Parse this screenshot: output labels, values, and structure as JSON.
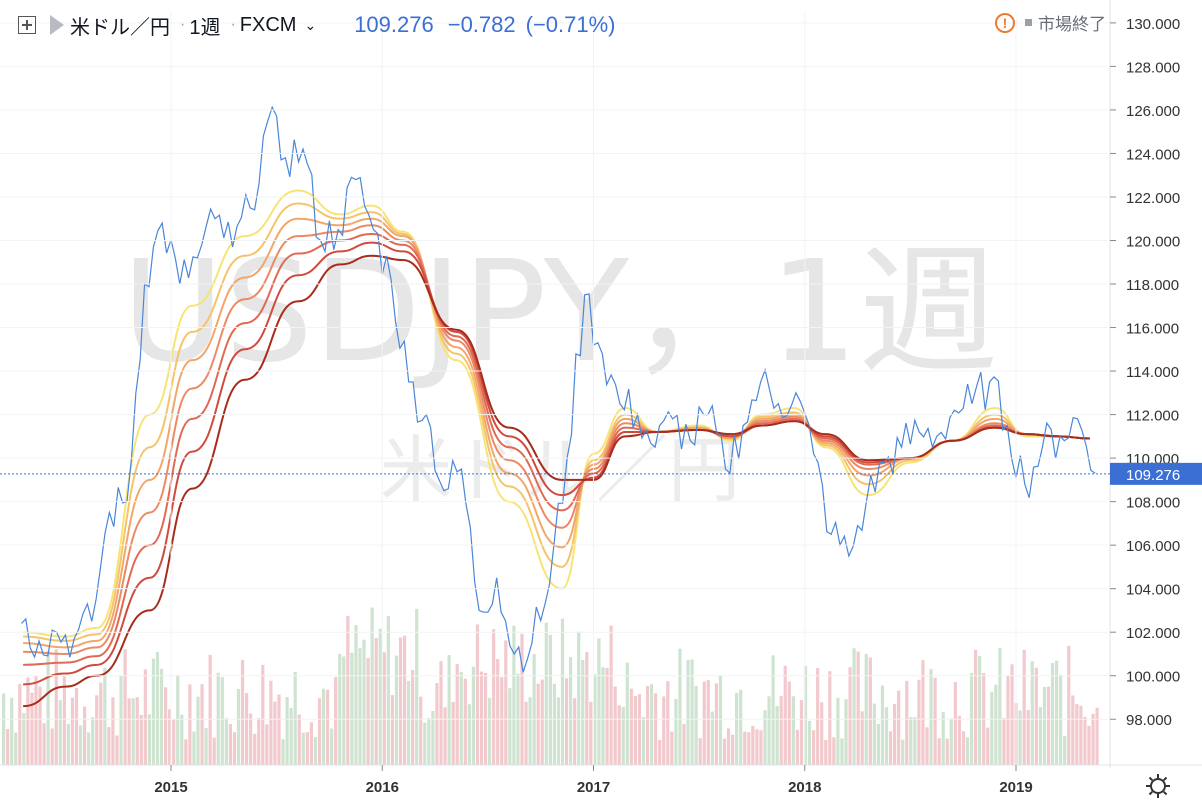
{
  "header": {
    "symbol": "米ドル／円",
    "interval": "1週",
    "exchange": "FXCM",
    "price": "109.276",
    "change": "−0.782",
    "change_pct": "(−0.71%)",
    "market_status": "市場終了"
  },
  "watermark": {
    "main": "USDJPY，1週",
    "sub": "米ドル／円"
  },
  "colors": {
    "price_line": "#4a86d9",
    "price_label_bg": "#3b6fd4",
    "vol_up": "#cfe3d1",
    "vol_down": "#f2c9cc",
    "ribbon": [
      "#f7e476",
      "#f6c36b",
      "#f2a66a",
      "#ec8a66",
      "#e16a55",
      "#cf4b3d",
      "#a82c1c"
    ]
  },
  "chart_data": {
    "type": "line",
    "title": "米ドル／円",
    "ylim": [
      97,
      130.5
    ],
    "yticks": [
      "98.000",
      "100.000",
      "102.000",
      "104.000",
      "106.000",
      "108.000",
      "110.000",
      "112.000",
      "114.000",
      "116.000",
      "118.000",
      "120.000",
      "122.000",
      "124.000",
      "126.000",
      "128.000",
      "130.000"
    ],
    "xticks": [
      "2015",
      "2016",
      "2017",
      "2018",
      "2019"
    ],
    "last_price": 109.276,
    "price_series": {
      "name": "USDJPY 1週",
      "points": [
        [
          "2014-04",
          102.4
        ],
        [
          "2014-05",
          101.6
        ],
        [
          "2014-06",
          102.0
        ],
        [
          "2014-07",
          101.7
        ],
        [
          "2014-08",
          102.5
        ],
        [
          "2014-09",
          107.5
        ],
        [
          "2014-10",
          108.0
        ],
        [
          "2014-11",
          118.0
        ],
        [
          "2014-12",
          120.8
        ],
        [
          "2015-01",
          118.0
        ],
        [
          "2015-02",
          119.2
        ],
        [
          "2015-03",
          121.0
        ],
        [
          "2015-04",
          119.7
        ],
        [
          "2015-05",
          121.5
        ],
        [
          "2015-06",
          125.5
        ],
        [
          "2015-07",
          123.8
        ],
        [
          "2015-08",
          124.2
        ],
        [
          "2015-09",
          120.0
        ],
        [
          "2015-10",
          120.5
        ],
        [
          "2015-11",
          122.8
        ],
        [
          "2015-12",
          120.5
        ],
        [
          "2016-01",
          118.2
        ],
        [
          "2016-02",
          113.5
        ],
        [
          "2016-03",
          112.0
        ],
        [
          "2016-04",
          108.5
        ],
        [
          "2016-05",
          109.5
        ],
        [
          "2016-06",
          103.0
        ],
        [
          "2016-07",
          104.5
        ],
        [
          "2016-08",
          101.0
        ],
        [
          "2016-09",
          101.5
        ],
        [
          "2016-10",
          104.2
        ],
        [
          "2016-11",
          110.0
        ],
        [
          "2016-12",
          117.5
        ],
        [
          "2017-01",
          114.8
        ],
        [
          "2017-02",
          112.5
        ],
        [
          "2017-03",
          112.0
        ],
        [
          "2017-04",
          110.5
        ],
        [
          "2017-05",
          111.8
        ],
        [
          "2017-06",
          110.8
        ],
        [
          "2017-07",
          112.0
        ],
        [
          "2017-08",
          109.5
        ],
        [
          "2017-09",
          111.5
        ],
        [
          "2017-10",
          113.5
        ],
        [
          "2017-11",
          112.5
        ],
        [
          "2017-12",
          113.0
        ],
        [
          "2018-01",
          110.2
        ],
        [
          "2018-02",
          106.5
        ],
        [
          "2018-03",
          105.5
        ],
        [
          "2018-04",
          108.0
        ],
        [
          "2018-05",
          109.8
        ],
        [
          "2018-06",
          110.5
        ],
        [
          "2018-07",
          111.2
        ],
        [
          "2018-08",
          111.0
        ],
        [
          "2018-09",
          112.2
        ],
        [
          "2018-10",
          112.5
        ],
        [
          "2018-11",
          113.5
        ],
        [
          "2018-12",
          111.5
        ],
        [
          "2019-01",
          108.8
        ],
        [
          "2019-02",
          110.5
        ],
        [
          "2019-03",
          111.0
        ],
        [
          "2019-04",
          111.8
        ],
        [
          "2019-05",
          109.3
        ]
      ]
    },
    "ribbon": [
      {
        "name": "MA1",
        "values": [
          [
            2014.3,
            102.0
          ],
          [
            2014.5,
            101.8
          ],
          [
            2014.65,
            102.2
          ],
          [
            2014.9,
            112.0
          ],
          [
            2015.1,
            117.0
          ],
          [
            2015.35,
            120.2
          ],
          [
            2015.6,
            122.3
          ],
          [
            2015.8,
            121.2
          ],
          [
            2015.95,
            121.6
          ],
          [
            2016.1,
            120.4
          ],
          [
            2016.35,
            114.5
          ],
          [
            2016.6,
            108.0
          ],
          [
            2016.85,
            104.0
          ],
          [
            2017.0,
            110.2
          ],
          [
            2017.15,
            112.3
          ],
          [
            2017.3,
            111.2
          ],
          [
            2017.5,
            111.5
          ],
          [
            2017.65,
            110.8
          ],
          [
            2017.8,
            112.0
          ],
          [
            2017.95,
            112.3
          ],
          [
            2018.1,
            110.5
          ],
          [
            2018.3,
            108.3
          ],
          [
            2018.5,
            109.8
          ],
          [
            2018.7,
            110.8
          ],
          [
            2018.9,
            112.3
          ],
          [
            2019.05,
            111.0
          ],
          [
            2019.2,
            111.0
          ],
          [
            2019.35,
            110.9
          ]
        ]
      },
      {
        "name": "MA2",
        "values": [
          [
            2014.3,
            101.8
          ],
          [
            2014.5,
            101.6
          ],
          [
            2014.65,
            101.9
          ],
          [
            2014.9,
            110.5
          ],
          [
            2015.1,
            115.8
          ],
          [
            2015.35,
            119.3
          ],
          [
            2015.6,
            121.7
          ],
          [
            2015.8,
            121.0
          ],
          [
            2015.95,
            121.3
          ],
          [
            2016.1,
            120.3
          ],
          [
            2016.35,
            114.8
          ],
          [
            2016.6,
            108.7
          ],
          [
            2016.85,
            105.0
          ],
          [
            2017.0,
            109.9
          ],
          [
            2017.15,
            112.0
          ],
          [
            2017.3,
            111.2
          ],
          [
            2017.5,
            111.4
          ],
          [
            2017.65,
            110.9
          ],
          [
            2017.8,
            111.9
          ],
          [
            2017.95,
            112.1
          ],
          [
            2018.1,
            110.6
          ],
          [
            2018.3,
            108.8
          ],
          [
            2018.5,
            109.9
          ],
          [
            2018.7,
            110.8
          ],
          [
            2018.9,
            112.0
          ],
          [
            2019.05,
            111.1
          ],
          [
            2019.2,
            111.0
          ],
          [
            2019.35,
            110.9
          ]
        ]
      },
      {
        "name": "MA3",
        "values": [
          [
            2014.3,
            101.5
          ],
          [
            2014.5,
            101.3
          ],
          [
            2014.65,
            101.6
          ],
          [
            2014.9,
            109.0
          ],
          [
            2015.1,
            114.5
          ],
          [
            2015.35,
            118.3
          ],
          [
            2015.6,
            121.0
          ],
          [
            2015.8,
            120.7
          ],
          [
            2015.95,
            121.0
          ],
          [
            2016.1,
            120.2
          ],
          [
            2016.35,
            115.1
          ],
          [
            2016.6,
            109.3
          ],
          [
            2016.85,
            105.9
          ],
          [
            2017.0,
            109.7
          ],
          [
            2017.15,
            111.8
          ],
          [
            2017.3,
            111.2
          ],
          [
            2017.5,
            111.4
          ],
          [
            2017.65,
            110.9
          ],
          [
            2017.8,
            111.8
          ],
          [
            2017.95,
            112.0
          ],
          [
            2018.1,
            110.7
          ],
          [
            2018.3,
            109.2
          ],
          [
            2018.5,
            110.0
          ],
          [
            2018.7,
            110.8
          ],
          [
            2018.9,
            111.8
          ],
          [
            2019.05,
            111.1
          ],
          [
            2019.2,
            111.0
          ],
          [
            2019.35,
            110.9
          ]
        ]
      },
      {
        "name": "MA4",
        "values": [
          [
            2014.3,
            101.1
          ],
          [
            2014.5,
            101.0
          ],
          [
            2014.65,
            101.3
          ],
          [
            2014.9,
            107.5
          ],
          [
            2015.1,
            113.2
          ],
          [
            2015.35,
            117.3
          ],
          [
            2015.6,
            120.2
          ],
          [
            2015.8,
            120.4
          ],
          [
            2015.95,
            120.7
          ],
          [
            2016.1,
            120.0
          ],
          [
            2016.35,
            115.4
          ],
          [
            2016.6,
            109.9
          ],
          [
            2016.85,
            106.8
          ],
          [
            2017.0,
            109.5
          ],
          [
            2017.15,
            111.6
          ],
          [
            2017.3,
            111.2
          ],
          [
            2017.5,
            111.3
          ],
          [
            2017.65,
            111.0
          ],
          [
            2017.8,
            111.7
          ],
          [
            2017.95,
            111.9
          ],
          [
            2018.1,
            110.8
          ],
          [
            2018.3,
            109.5
          ],
          [
            2018.5,
            110.0
          ],
          [
            2018.7,
            110.8
          ],
          [
            2018.9,
            111.6
          ],
          [
            2019.05,
            111.1
          ],
          [
            2019.2,
            111.0
          ],
          [
            2019.35,
            110.9
          ]
        ]
      },
      {
        "name": "MA5",
        "values": [
          [
            2014.3,
            100.5
          ],
          [
            2014.5,
            100.6
          ],
          [
            2014.65,
            100.9
          ],
          [
            2014.9,
            106.0
          ],
          [
            2015.1,
            111.8
          ],
          [
            2015.35,
            116.2
          ],
          [
            2015.6,
            119.4
          ],
          [
            2015.8,
            120.0
          ],
          [
            2015.95,
            120.3
          ],
          [
            2016.1,
            119.8
          ],
          [
            2016.35,
            115.6
          ],
          [
            2016.6,
            110.5
          ],
          [
            2016.85,
            107.6
          ],
          [
            2017.0,
            109.3
          ],
          [
            2017.15,
            111.4
          ],
          [
            2017.3,
            111.2
          ],
          [
            2017.5,
            111.3
          ],
          [
            2017.65,
            111.0
          ],
          [
            2017.8,
            111.6
          ],
          [
            2017.95,
            111.8
          ],
          [
            2018.1,
            110.9
          ],
          [
            2018.3,
            109.7
          ],
          [
            2018.5,
            110.0
          ],
          [
            2018.7,
            110.8
          ],
          [
            2018.9,
            111.5
          ],
          [
            2019.05,
            111.1
          ],
          [
            2019.2,
            111.0
          ],
          [
            2019.35,
            110.9
          ]
        ]
      },
      {
        "name": "MA6",
        "values": [
          [
            2014.3,
            99.6
          ],
          [
            2014.5,
            100.1
          ],
          [
            2014.65,
            100.5
          ],
          [
            2014.9,
            104.5
          ],
          [
            2015.1,
            110.3
          ],
          [
            2015.35,
            115.0
          ],
          [
            2015.6,
            118.4
          ],
          [
            2015.8,
            119.5
          ],
          [
            2015.95,
            119.9
          ],
          [
            2016.1,
            119.5
          ],
          [
            2016.35,
            115.8
          ],
          [
            2016.6,
            111.0
          ],
          [
            2016.85,
            108.3
          ],
          [
            2017.0,
            109.1
          ],
          [
            2017.15,
            111.2
          ],
          [
            2017.3,
            111.2
          ],
          [
            2017.5,
            111.3
          ],
          [
            2017.65,
            111.0
          ],
          [
            2017.8,
            111.5
          ],
          [
            2017.95,
            111.7
          ],
          [
            2018.1,
            111.0
          ],
          [
            2018.3,
            109.8
          ],
          [
            2018.5,
            110.0
          ],
          [
            2018.7,
            110.8
          ],
          [
            2018.9,
            111.4
          ],
          [
            2019.05,
            111.1
          ],
          [
            2019.2,
            111.0
          ],
          [
            2019.35,
            110.9
          ]
        ]
      },
      {
        "name": "MA7",
        "values": [
          [
            2014.3,
            98.6
          ],
          [
            2014.5,
            99.5
          ],
          [
            2014.65,
            100.0
          ],
          [
            2014.9,
            103.0
          ],
          [
            2015.1,
            108.6
          ],
          [
            2015.35,
            113.6
          ],
          [
            2015.6,
            117.2
          ],
          [
            2015.8,
            118.9
          ],
          [
            2015.95,
            119.3
          ],
          [
            2016.1,
            119.1
          ],
          [
            2016.35,
            115.9
          ],
          [
            2016.6,
            111.4
          ],
          [
            2016.85,
            109.0
          ],
          [
            2017.0,
            109.0
          ],
          [
            2017.15,
            111.0
          ],
          [
            2017.3,
            111.2
          ],
          [
            2017.5,
            111.3
          ],
          [
            2017.65,
            111.1
          ],
          [
            2017.8,
            111.5
          ],
          [
            2017.95,
            111.7
          ],
          [
            2018.1,
            111.1
          ],
          [
            2018.3,
            109.9
          ],
          [
            2018.5,
            110.0
          ],
          [
            2018.7,
            110.8
          ],
          [
            2018.9,
            111.4
          ],
          [
            2019.05,
            111.1
          ],
          [
            2019.2,
            111.0
          ],
          [
            2019.35,
            110.9
          ]
        ]
      }
    ]
  }
}
